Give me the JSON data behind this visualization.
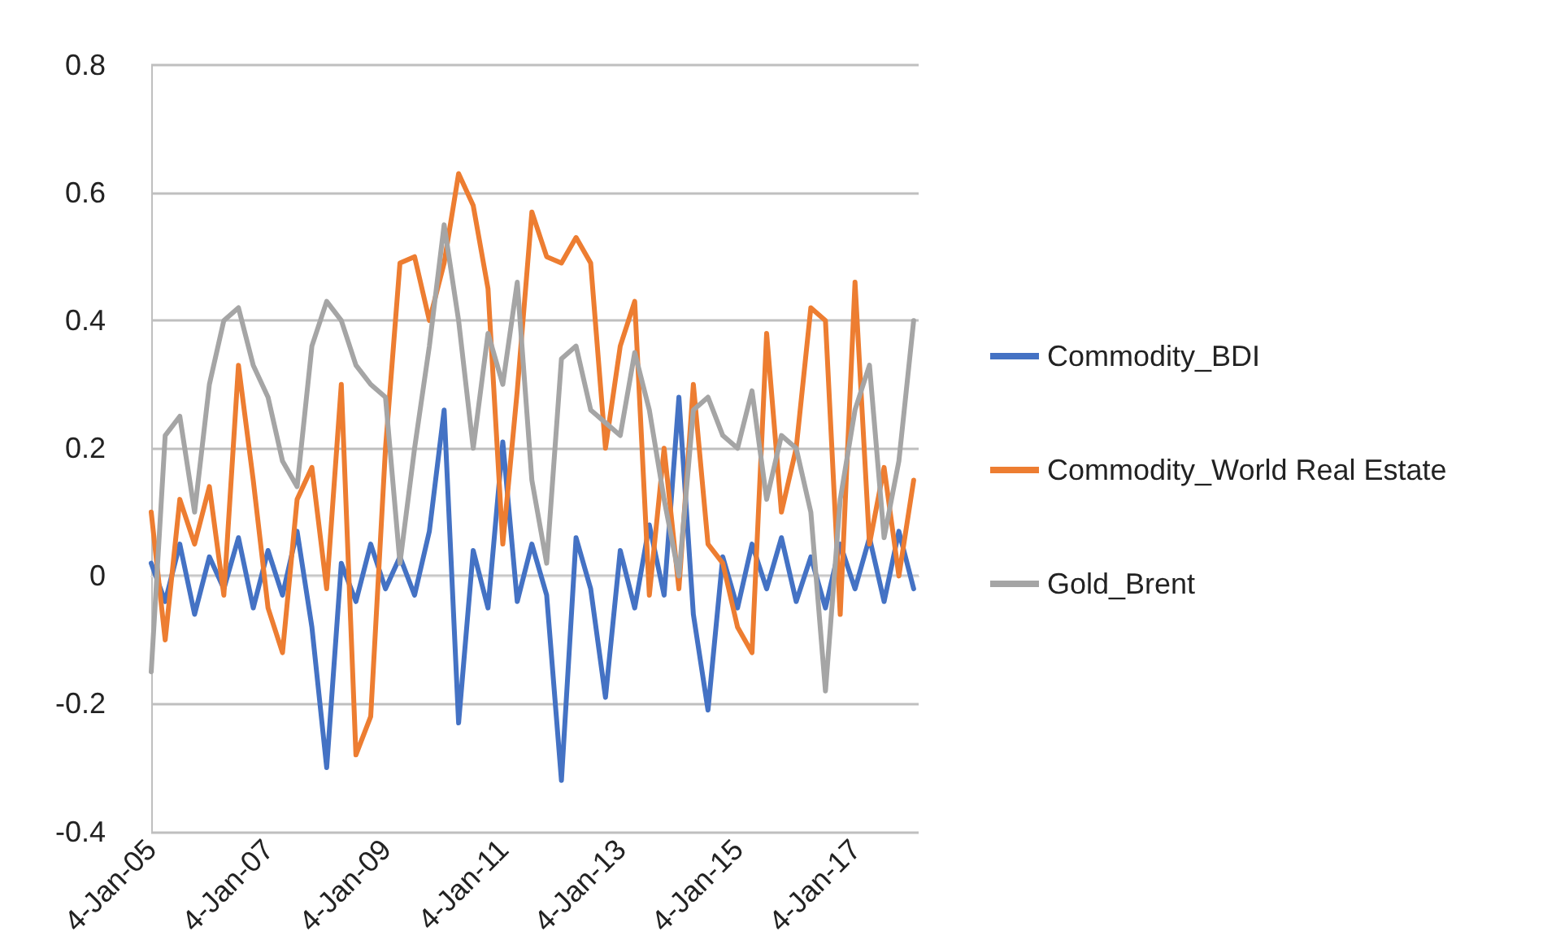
{
  "chart_data": {
    "type": "line",
    "x": [
      "2005-01-04",
      "2005-04",
      "2005-07",
      "2005-10",
      "2006-01",
      "2006-04",
      "2006-07",
      "2006-10",
      "2007-01",
      "2007-04",
      "2007-07",
      "2007-10",
      "2008-01",
      "2008-04",
      "2008-07",
      "2008-10",
      "2009-01",
      "2009-04",
      "2009-07",
      "2009-10",
      "2010-01",
      "2010-04",
      "2010-07",
      "2010-10",
      "2011-01",
      "2011-04",
      "2011-07",
      "2011-10",
      "2012-01",
      "2012-04",
      "2012-07",
      "2012-10",
      "2013-01",
      "2013-04",
      "2013-07",
      "2013-10",
      "2014-01",
      "2014-04",
      "2014-07",
      "2014-10",
      "2015-01",
      "2015-04",
      "2015-07",
      "2015-10",
      "2016-01",
      "2016-04",
      "2016-07",
      "2016-10",
      "2017-01",
      "2017-04",
      "2017-07",
      "2017-10",
      "2018-01"
    ],
    "series": [
      {
        "name": "Commodity_BDI",
        "color": "#4472c4",
        "values": [
          0.02,
          -0.04,
          0.05,
          -0.06,
          0.03,
          -0.02,
          0.06,
          -0.05,
          0.04,
          -0.03,
          0.07,
          -0.08,
          -0.3,
          0.02,
          -0.04,
          0.05,
          -0.02,
          0.03,
          -0.03,
          0.07,
          0.26,
          -0.23,
          0.04,
          -0.05,
          0.21,
          -0.04,
          0.05,
          -0.03,
          -0.32,
          0.06,
          -0.02,
          -0.19,
          0.04,
          -0.05,
          0.08,
          -0.03,
          0.28,
          -0.06,
          -0.21,
          0.03,
          -0.05,
          0.05,
          -0.02,
          0.06,
          -0.04,
          0.03,
          -0.05,
          0.05,
          -0.02,
          0.06,
          -0.04,
          0.07,
          -0.02
        ]
      },
      {
        "name": "Commodity_World Real Estate",
        "color": "#ed7d31",
        "values": [
          0.1,
          -0.1,
          0.12,
          0.05,
          0.14,
          -0.03,
          0.33,
          0.15,
          -0.05,
          -0.12,
          0.12,
          0.17,
          -0.02,
          0.3,
          -0.28,
          -0.22,
          0.2,
          0.49,
          0.5,
          0.4,
          0.49,
          0.63,
          0.58,
          0.45,
          0.05,
          0.29,
          0.57,
          0.5,
          0.49,
          0.53,
          0.49,
          0.2,
          0.36,
          0.43,
          -0.03,
          0.2,
          -0.02,
          0.3,
          0.05,
          0.02,
          -0.08,
          -0.12,
          0.38,
          0.1,
          0.2,
          0.42,
          0.4,
          -0.06,
          0.46,
          0.05,
          0.17,
          0.0,
          0.15
        ]
      },
      {
        "name": "Gold_Brent",
        "color": "#a5a5a5",
        "values": [
          -0.15,
          0.22,
          0.25,
          0.1,
          0.3,
          0.4,
          0.42,
          0.33,
          0.28,
          0.18,
          0.14,
          0.36,
          0.43,
          0.4,
          0.33,
          0.3,
          0.28,
          0.02,
          0.2,
          0.36,
          0.55,
          0.4,
          0.2,
          0.38,
          0.3,
          0.46,
          0.15,
          0.02,
          0.34,
          0.36,
          0.26,
          0.24,
          0.22,
          0.35,
          0.26,
          0.12,
          0.0,
          0.26,
          0.28,
          0.22,
          0.2,
          0.29,
          0.12,
          0.22,
          0.2,
          0.1,
          -0.18,
          0.12,
          0.26,
          0.33,
          0.06,
          0.18,
          0.4
        ]
      }
    ],
    "xlim": [
      "2005-01-04",
      "2018-02"
    ],
    "xticks": [
      {
        "value": "2005-01-04",
        "label": "4-Jan-05"
      },
      {
        "value": "2007-01-04",
        "label": "4-Jan-07"
      },
      {
        "value": "2009-01-04",
        "label": "4-Jan-09"
      },
      {
        "value": "2011-01-04",
        "label": "4-Jan-11"
      },
      {
        "value": "2013-01-04",
        "label": "4-Jan-13"
      },
      {
        "value": "2015-01-04",
        "label": "4-Jan-15"
      },
      {
        "value": "2017-01-04",
        "label": "4-Jan-17"
      }
    ],
    "ylim": [
      -0.4,
      0.8
    ],
    "yticks": [
      -0.4,
      -0.2,
      0,
      0.2,
      0.4,
      0.6,
      0.8
    ],
    "grid": "y",
    "legend": "right"
  }
}
